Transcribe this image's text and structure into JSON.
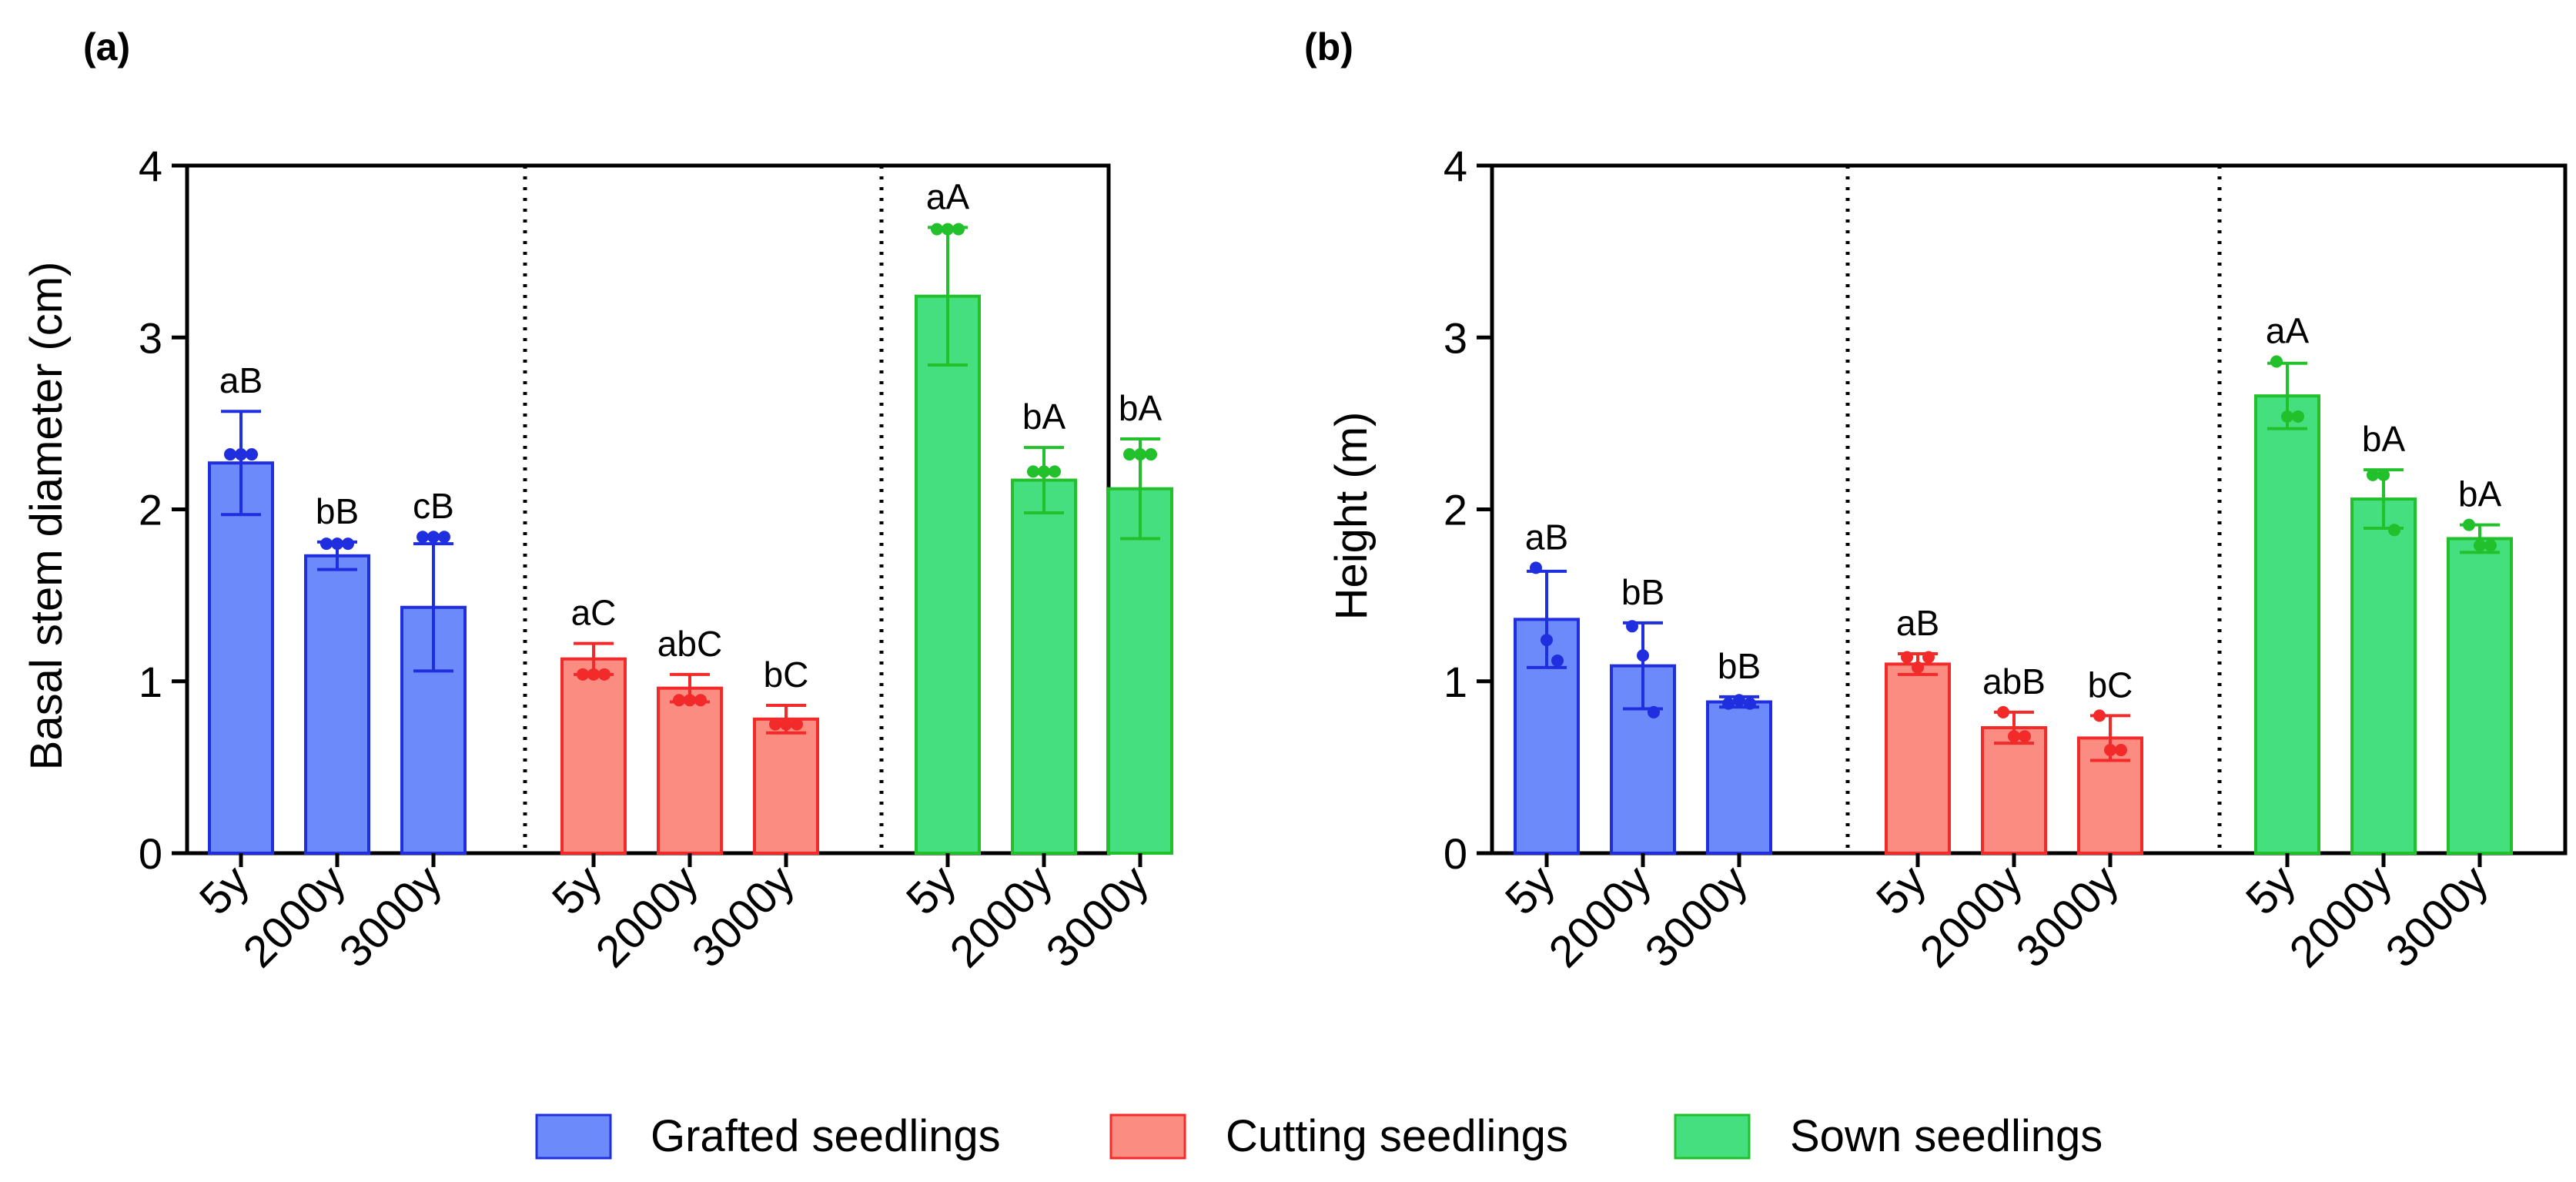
{
  "chart_data": [
    {
      "panel_label": "(a)",
      "type": "bar",
      "ylabel": "Basal stem diameter (cm)",
      "xlabel": "",
      "ylim": [
        0,
        4
      ],
      "yticks": [
        "0",
        "1",
        "2",
        "3",
        "4"
      ],
      "grid": false,
      "groups": [
        {
          "name": "Grafted seedlings",
          "color_key": "grafted",
          "bars": [
            {
              "category": "5y",
              "mean": 2.27,
              "err": 0.3,
              "points": [
                2.32,
                2.32,
                2.32
              ],
              "letter": "aB"
            },
            {
              "category": "2000y",
              "mean": 1.73,
              "err": 0.08,
              "points": [
                1.8,
                1.8,
                1.8
              ],
              "letter": "bB"
            },
            {
              "category": "3000y",
              "mean": 1.43,
              "err": 0.37,
              "points": [
                1.84,
                1.84,
                1.84
              ],
              "letter": "cB"
            }
          ]
        },
        {
          "name": "Cutting seedlings",
          "color_key": "cutting",
          "bars": [
            {
              "category": "5y",
              "mean": 1.13,
              "err": 0.09,
              "points": [
                1.04,
                1.04,
                1.04
              ],
              "letter": "aC"
            },
            {
              "category": "2000y",
              "mean": 0.96,
              "err": 0.08,
              "points": [
                0.89,
                0.89,
                0.89
              ],
              "letter": "abC"
            },
            {
              "category": "3000y",
              "mean": 0.78,
              "err": 0.08,
              "points": [
                0.75,
                0.75,
                0.75
              ],
              "letter": "bC"
            }
          ]
        },
        {
          "name": "Sown seedlings",
          "color_key": "sown",
          "bars": [
            {
              "category": "5y",
              "mean": 3.24,
              "err": 0.4,
              "points": [
                3.63,
                3.63,
                3.63
              ],
              "letter": "aA"
            },
            {
              "category": "2000y",
              "mean": 2.17,
              "err": 0.19,
              "points": [
                2.22,
                2.22,
                2.22
              ],
              "letter": "bA"
            },
            {
              "category": "3000y",
              "mean": 2.12,
              "err": 0.29,
              "points": [
                2.32,
                2.32,
                2.32
              ],
              "letter": "bA"
            }
          ]
        }
      ]
    },
    {
      "panel_label": "(b)",
      "type": "bar",
      "ylabel": "Height (m)",
      "xlabel": "",
      "ylim": [
        0,
        4
      ],
      "yticks": [
        "0",
        "1",
        "2",
        "3",
        "4"
      ],
      "grid": false,
      "groups": [
        {
          "name": "Grafted seedlings",
          "color_key": "grafted",
          "bars": [
            {
              "category": "5y",
              "mean": 1.36,
              "err": 0.28,
              "points": [
                1.66,
                1.24,
                1.12
              ],
              "letter": "aB"
            },
            {
              "category": "2000y",
              "mean": 1.09,
              "err": 0.25,
              "points": [
                1.32,
                1.15,
                0.82
              ],
              "letter": "bB"
            },
            {
              "category": "3000y",
              "mean": 0.88,
              "err": 0.03,
              "points": [
                0.87,
                0.89,
                0.87
              ],
              "letter": "bB"
            }
          ]
        },
        {
          "name": "Cutting seedlings",
          "color_key": "cutting",
          "bars": [
            {
              "category": "5y",
              "mean": 1.1,
              "err": 0.06,
              "points": [
                1.14,
                1.08,
                1.14
              ],
              "letter": "aB"
            },
            {
              "category": "2000y",
              "mean": 0.73,
              "err": 0.09,
              "points": [
                0.82,
                0.68,
                0.68
              ],
              "letter": "abB"
            },
            {
              "category": "3000y",
              "mean": 0.67,
              "err": 0.13,
              "points": [
                0.8,
                0.6,
                0.6
              ],
              "letter": "bC"
            }
          ]
        },
        {
          "name": "Sown seedlings",
          "color_key": "sown",
          "bars": [
            {
              "category": "5y",
              "mean": 2.66,
              "err": 0.19,
              "points": [
                2.86,
                2.54,
                2.54
              ],
              "letter": "aA"
            },
            {
              "category": "2000y",
              "mean": 2.06,
              "err": 0.17,
              "points": [
                2.2,
                2.2,
                1.88
              ],
              "letter": "bA"
            },
            {
              "category": "3000y",
              "mean": 1.83,
              "err": 0.08,
              "points": [
                1.91,
                1.79,
                1.79
              ],
              "letter": "bA"
            }
          ]
        }
      ]
    }
  ],
  "legend": {
    "position": "bottom-center",
    "items": [
      {
        "label": "Grafted seedlings",
        "color_key": "grafted"
      },
      {
        "label": "Cutting seedlings",
        "color_key": "cutting"
      },
      {
        "label": "Sown seedlings",
        "color_key": "sown"
      }
    ]
  },
  "colors": {
    "grafted": {
      "fill": "#6D8AFA",
      "edge": "#1F2FE0"
    },
    "cutting": {
      "fill": "#FA8C82",
      "edge": "#F22A2A"
    },
    "sown": {
      "fill": "#45DF7F",
      "edge": "#22C02A"
    },
    "axis": "#000000"
  }
}
